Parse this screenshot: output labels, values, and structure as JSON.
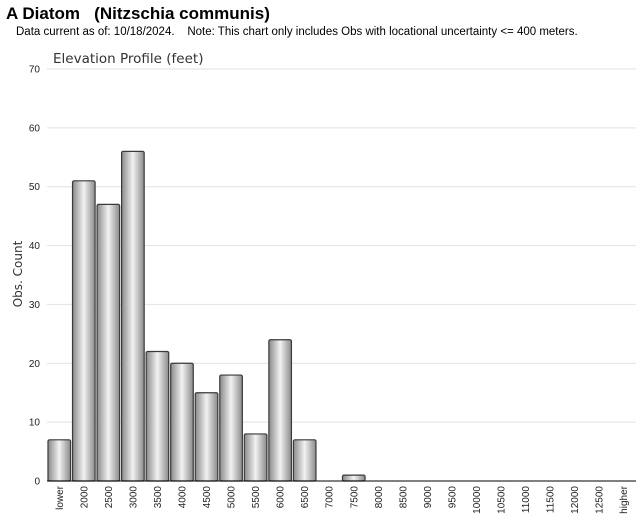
{
  "header": {
    "title": "A Diatom   (Nitzschia communis)",
    "subtitle": "Data current as of: 10/18/2024.    Note: This chart only includes Obs with locational uncertainty <= 400 meters."
  },
  "chart_data": {
    "type": "bar",
    "title": "Elevation Profile (feet)",
    "xlabel": "",
    "ylabel": "Obs. Count",
    "ylim": [
      0,
      70
    ],
    "yticks": [
      0,
      10,
      20,
      30,
      40,
      50,
      60,
      70
    ],
    "grid": true,
    "categories": [
      "lower",
      "2000",
      "2500",
      "3000",
      "3500",
      "4000",
      "4500",
      "5000",
      "5500",
      "6000",
      "6500",
      "7000",
      "7500",
      "8000",
      "8500",
      "9000",
      "9500",
      "10000",
      "10500",
      "11000",
      "11500",
      "12000",
      "12500",
      "higher"
    ],
    "values": [
      7,
      51,
      47,
      56,
      22,
      20,
      15,
      18,
      8,
      24,
      7,
      0,
      1,
      0,
      0,
      0,
      0,
      0,
      0,
      0,
      0,
      0,
      0,
      0
    ],
    "colors": {
      "bar_light": "#f2f2f2",
      "bar_dark": "#8a8a8a",
      "bar_stroke": "#3a3a3a",
      "grid": "#e2e2e2",
      "axis": "#000000"
    }
  }
}
